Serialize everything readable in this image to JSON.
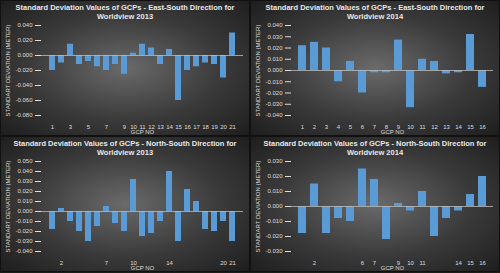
{
  "chart_data": [
    {
      "type": "bar",
      "title": "Standard Deviation Values of GCPs - East-South Direction for Worldview 2013",
      "x_label": "GCP NO",
      "y_label": "STANDART DEVIATION (METER)",
      "categories": [
        "1",
        null,
        "3",
        null,
        "5",
        null,
        "7",
        null,
        "9",
        "10",
        "11",
        "12",
        "13",
        "14",
        "15",
        "16",
        "17",
        "18",
        "19",
        "20",
        "21"
      ],
      "values": [
        -0.02,
        -0.01,
        0.015,
        -0.012,
        -0.008,
        -0.015,
        -0.02,
        -0.012,
        -0.025,
        0.003,
        0.015,
        0.01,
        -0.012,
        0.008,
        -0.06,
        -0.02,
        -0.015,
        -0.01,
        -0.012,
        -0.03,
        0.03
      ],
      "color": "#5b9bd5",
      "grid": false,
      "ylim": [
        -0.08,
        0.04
      ],
      "yticks": [
        {
          "value": -0.08,
          "label": "-0.080"
        },
        {
          "value": -0.06,
          "label": "-0.060"
        },
        {
          "value": -0.04,
          "label": "-0.040"
        },
        {
          "value": -0.02,
          "label": "-0.020"
        },
        {
          "value": 0,
          "label": "0.000"
        },
        {
          "value": 0.02,
          "label": "0.020"
        },
        {
          "value": 0.04,
          "label": "0.040"
        }
      ]
    },
    {
      "type": "bar",
      "title": "Standard Deviation Values of GCPs - East-South Direction for Worldview 2014",
      "x_label": "GCP NO",
      "y_label": "STANDART DEVIATION (METER)",
      "categories": [
        "1",
        "2",
        "3",
        "4",
        "5",
        "6",
        "7",
        "8",
        "9",
        "10",
        "11",
        "12",
        "13",
        "14",
        "15",
        "16"
      ],
      "values": [
        0.022,
        0.025,
        0.02,
        -0.01,
        0.008,
        -0.02,
        -0.002,
        -0.002,
        0.027,
        -0.033,
        0.01,
        0.008,
        -0.003,
        -0.002,
        0.032,
        -0.015
      ],
      "color": "#5b9bd5",
      "grid": false,
      "ylim": [
        -0.04,
        0.04
      ],
      "yticks": [
        {
          "value": -0.04,
          "label": "-0.040"
        },
        {
          "value": -0.03,
          "label": "-0.030"
        },
        {
          "value": -0.02,
          "label": "-0.020"
        },
        {
          "value": -0.01,
          "label": "-0.010"
        },
        {
          "value": 0,
          "label": "0.000"
        },
        {
          "value": 0.01,
          "label": "0.010"
        },
        {
          "value": 0.02,
          "label": "0.020"
        },
        {
          "value": 0.03,
          "label": "0.030"
        },
        {
          "value": 0.04,
          "label": "0.040"
        }
      ]
    },
    {
      "type": "bar",
      "title": "Standard Deviation Values of GCPs - North-South Direction for Worldview 2013",
      "x_label": "GCP NO",
      "y_label": "STANDART DEVIATION (METER)",
      "categories": [
        null,
        "2",
        null,
        null,
        null,
        null,
        "7",
        null,
        null,
        "10",
        null,
        null,
        null,
        "14",
        null,
        null,
        null,
        null,
        null,
        "20",
        "21"
      ],
      "values": [
        -0.018,
        0.003,
        -0.01,
        -0.02,
        -0.03,
        -0.015,
        0.005,
        -0.012,
        -0.02,
        0.032,
        -0.025,
        -0.022,
        -0.01,
        0.04,
        -0.03,
        0.022,
        0.01,
        -0.018,
        -0.02,
        -0.01,
        -0.03
      ],
      "color": "#5b9bd5",
      "grid": false,
      "ylim": [
        -0.04,
        0.05
      ],
      "yticks": [
        {
          "value": -0.04,
          "label": "-0.040"
        },
        {
          "value": -0.03,
          "label": "-0.030"
        },
        {
          "value": -0.02,
          "label": "-0.020"
        },
        {
          "value": -0.01,
          "label": "-0.010"
        },
        {
          "value": 0,
          "label": "0.000"
        },
        {
          "value": 0.01,
          "label": "0.010"
        },
        {
          "value": 0.02,
          "label": "0.020"
        },
        {
          "value": 0.03,
          "label": "0.030"
        },
        {
          "value": 0.04,
          "label": "0.040"
        },
        {
          "value": 0.05,
          "label": "0.050"
        }
      ]
    },
    {
      "type": "bar",
      "title": "Standard Deviation Values of GCPs - North-South Direction for Worldview 2014",
      "x_label": "GCP NO",
      "y_label": "STANDART DEVIATION (METER)",
      "categories": [
        null,
        "2",
        null,
        null,
        null,
        "6",
        "7",
        null,
        "9",
        "10",
        "11",
        null,
        null,
        "14",
        "15",
        "16"
      ],
      "values": [
        -0.018,
        0.015,
        -0.018,
        -0.008,
        -0.01,
        0.025,
        0.018,
        -0.022,
        0.002,
        -0.003,
        0.01,
        -0.02,
        -0.008,
        -0.003,
        0.008,
        0.02
      ],
      "color": "#5b9bd5",
      "grid": false,
      "ylim": [
        -0.03,
        0.03
      ],
      "yticks": [
        {
          "value": -0.03,
          "label": "-0.030"
        },
        {
          "value": -0.02,
          "label": "-0.020"
        },
        {
          "value": -0.01,
          "label": "-0.010"
        },
        {
          "value": 0,
          "label": "0.000"
        },
        {
          "value": 0.01,
          "label": "0.010"
        },
        {
          "value": 0.02,
          "label": "0.020"
        },
        {
          "value": 0.03,
          "label": "0.030"
        }
      ]
    }
  ]
}
